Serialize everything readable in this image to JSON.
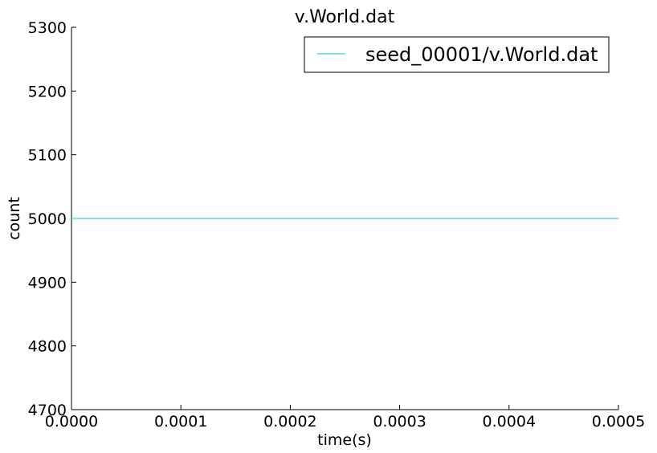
{
  "chart_data": {
    "type": "line",
    "title": "v.World.dat",
    "xlabel": "time(s)",
    "ylabel": "count",
    "xlim": [
      0.0,
      0.0005
    ],
    "ylim": [
      4700,
      5300
    ],
    "xticks": [
      "0.0000",
      "0.0001",
      "0.0002",
      "0.0003",
      "0.0004",
      "0.0005"
    ],
    "yticks": [
      "4700",
      "4800",
      "4900",
      "5000",
      "5100",
      "5200",
      "5300"
    ],
    "grid": false,
    "legend_position": "top-right",
    "series": [
      {
        "name": "seed_00001/v.World.dat",
        "color": "#00bfff",
        "x": [
          0.0,
          0.0005
        ],
        "y": [
          5000,
          5000
        ]
      }
    ]
  }
}
